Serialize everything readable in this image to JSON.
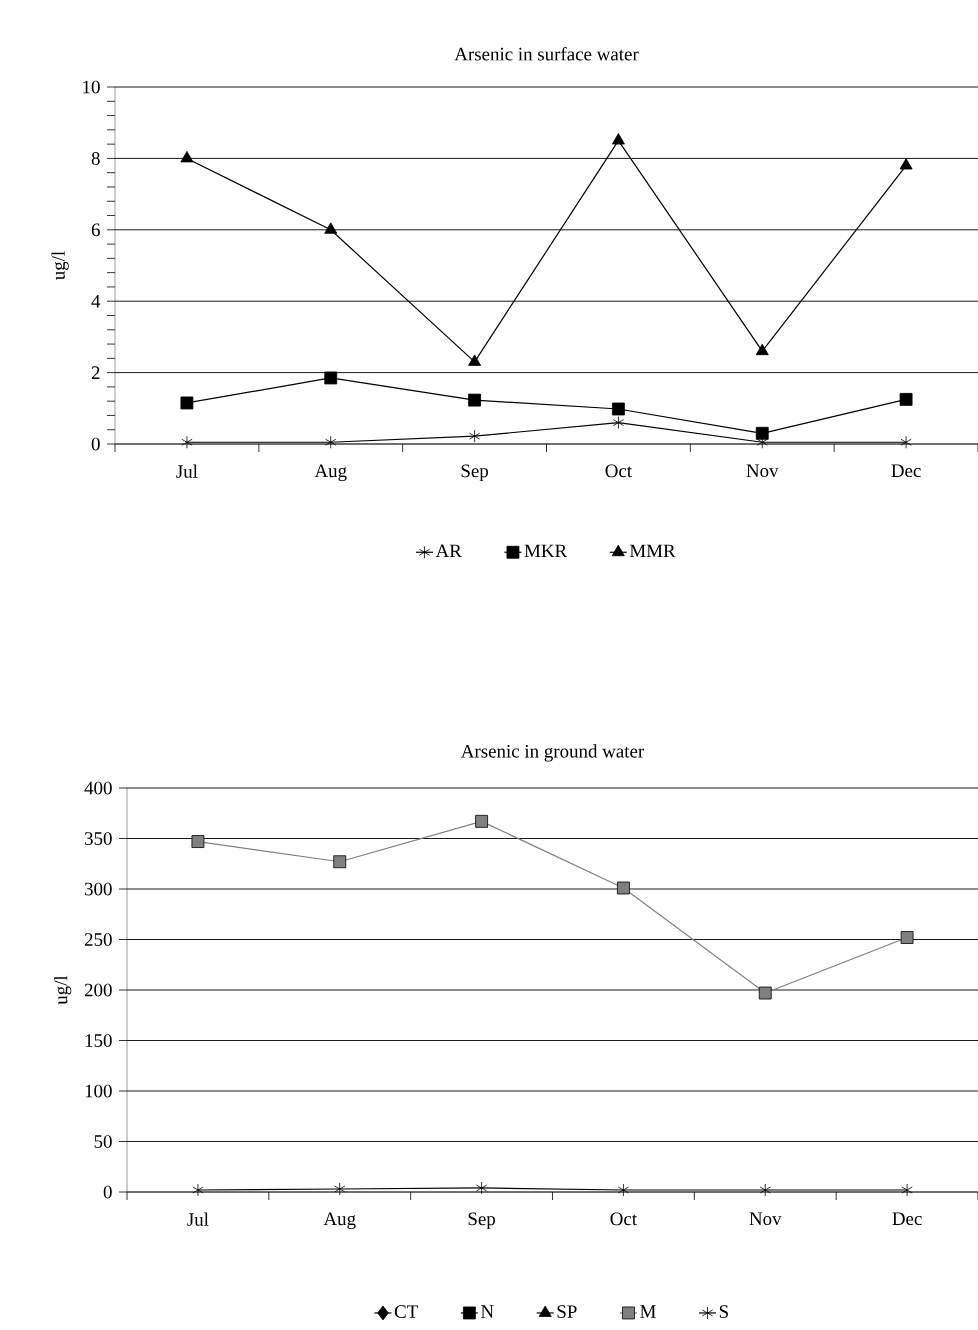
{
  "chart_data": [
    {
      "type": "line",
      "title": "Arsenic in surface water",
      "ylabel": "ug/l",
      "categories": [
        "Jul",
        "Aug",
        "Sep",
        "Oct",
        "Nov",
        "Dec"
      ],
      "ylim": [
        0,
        10
      ],
      "yticks": [
        0,
        2,
        4,
        6,
        8,
        10
      ],
      "grid": "y",
      "legend": "bottom",
      "series": [
        {
          "name": "AR",
          "color": "#000000",
          "marker": "cross",
          "values": [
            0.05,
            0.05,
            0.22,
            0.6,
            0.05,
            0.05
          ]
        },
        {
          "name": "MKR",
          "color": "#000000",
          "marker": "square",
          "values": [
            1.15,
            1.85,
            1.23,
            0.98,
            0.3,
            1.25
          ]
        },
        {
          "name": "MMR",
          "color": "#000000",
          "marker": "triangle",
          "values": [
            8.0,
            6.0,
            2.3,
            8.5,
            2.6,
            7.8
          ]
        }
      ]
    },
    {
      "type": "line",
      "title": "Arsenic in ground water",
      "ylabel": "ug/l",
      "categories": [
        "Jul",
        "Aug",
        "Sep",
        "Oct",
        "Nov",
        "Dec"
      ],
      "ylim": [
        0,
        400
      ],
      "yticks": [
        0,
        50,
        100,
        150,
        200,
        250,
        300,
        350,
        400
      ],
      "grid": "y",
      "legend": "bottom",
      "series": [
        {
          "name": "CT",
          "color": "#000000",
          "marker": "diamond",
          "values": [
            null,
            null,
            null,
            null,
            null,
            null
          ]
        },
        {
          "name": "N",
          "color": "#000000",
          "marker": "square",
          "values": [
            null,
            null,
            null,
            null,
            null,
            null
          ]
        },
        {
          "name": "SP",
          "color": "#000000",
          "marker": "triangle",
          "values": [
            null,
            null,
            null,
            null,
            null,
            null
          ]
        },
        {
          "name": "M",
          "color": "#808080",
          "marker": "square",
          "values": [
            347,
            327,
            367,
            301,
            197,
            252
          ]
        },
        {
          "name": "S",
          "color": "#000000",
          "marker": "cross",
          "values": [
            2,
            3,
            4,
            2,
            2,
            2
          ]
        }
      ]
    }
  ]
}
